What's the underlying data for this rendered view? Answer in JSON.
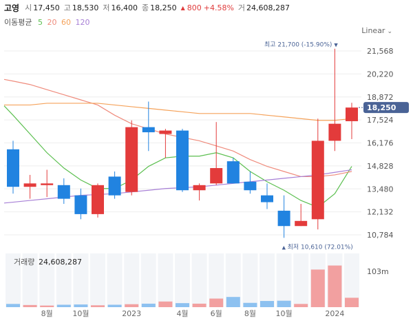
{
  "header": {
    "name": "고영",
    "open_label": "시",
    "open": "17,450",
    "high_label": "고",
    "high": "18,530",
    "low_label": "저",
    "low": "16,400",
    "close_label": "종",
    "close": "18,250",
    "change_arrow": "▲",
    "change": "800",
    "change_pct": "+4.58%",
    "volume_label": "거",
    "volume": "24,608,287"
  },
  "ma_legend": {
    "label": "이동평균",
    "items": [
      {
        "period": "5",
        "color": "#5bbf4f"
      },
      {
        "period": "20",
        "color": "#ef8b7c"
      },
      {
        "period": "60",
        "color": "#f5a25a"
      },
      {
        "period": "120",
        "color": "#a77fd6"
      }
    ]
  },
  "scale_button": {
    "label": "Linear"
  },
  "colors": {
    "up": "#e33b3b",
    "down": "#2183e0",
    "price_tag": "#4a6396"
  },
  "chart_data": {
    "type": "candlestick",
    "y_ticks": [
      "21,568",
      "20,220",
      "18,872",
      "17,524",
      "16,176",
      "14,828",
      "13,480",
      "12,132",
      "10,784"
    ],
    "ylim": [
      10300,
      22100
    ],
    "x_ticks": [
      {
        "index": 2,
        "label": "8월"
      },
      {
        "index": 4,
        "label": "10월"
      },
      {
        "index": 7,
        "label": "2023"
      },
      {
        "index": 10,
        "label": "4월"
      },
      {
        "index": 12,
        "label": "6월"
      },
      {
        "index": 14,
        "label": "8월"
      },
      {
        "index": 16,
        "label": "10월"
      },
      {
        "index": 19,
        "label": "2024"
      }
    ],
    "candles": [
      {
        "o": 15800,
        "h": 16300,
        "l": 13200,
        "c": 13600
      },
      {
        "o": 13600,
        "h": 14300,
        "l": 12900,
        "c": 13800
      },
      {
        "o": 13700,
        "h": 14600,
        "l": 13000,
        "c": 13800
      },
      {
        "o": 13700,
        "h": 14100,
        "l": 12600,
        "c": 12900
      },
      {
        "o": 13100,
        "h": 13500,
        "l": 11700,
        "c": 12000
      },
      {
        "o": 12000,
        "h": 13800,
        "l": 11800,
        "c": 13700
      },
      {
        "o": 14200,
        "h": 14500,
        "l": 12900,
        "c": 13100
      },
      {
        "o": 13300,
        "h": 17500,
        "l": 13100,
        "c": 17100
      },
      {
        "o": 17100,
        "h": 18600,
        "l": 15700,
        "c": 16800
      },
      {
        "o": 16700,
        "h": 17000,
        "l": 15300,
        "c": 16900
      },
      {
        "o": 16900,
        "h": 17000,
        "l": 13300,
        "c": 13400
      },
      {
        "o": 13400,
        "h": 13800,
        "l": 12800,
        "c": 13700
      },
      {
        "o": 13800,
        "h": 17400,
        "l": 13700,
        "c": 14700
      },
      {
        "o": 15100,
        "h": 15300,
        "l": 13800,
        "c": 13800
      },
      {
        "o": 13900,
        "h": 14500,
        "l": 13200,
        "c": 13400
      },
      {
        "o": 13100,
        "h": 13800,
        "l": 12300,
        "c": 12700
      },
      {
        "o": 12200,
        "h": 13100,
        "l": 10610,
        "c": 11300
      },
      {
        "o": 11300,
        "h": 12600,
        "l": 11300,
        "c": 11600
      },
      {
        "o": 11700,
        "h": 17600,
        "l": 11100,
        "c": 16300
      },
      {
        "o": 16300,
        "h": 21700,
        "l": 15700,
        "c": 17300
      },
      {
        "o": 17450,
        "h": 18530,
        "l": 16400,
        "c": 18250
      }
    ],
    "ma": [
      {
        "period": "5",
        "color": "#5bbf4f",
        "values": [
          17800,
          16700,
          15600,
          14700,
          14000,
          13500,
          13500,
          14000,
          14800,
          15300,
          15400,
          15400,
          15600,
          15300,
          14500,
          13900,
          13400,
          12800,
          12400,
          13200,
          14800
        ]
      },
      {
        "period": "20",
        "color": "#ef8b7c",
        "values": [
          19800,
          19600,
          19300,
          19000,
          18700,
          18400,
          17800,
          17300,
          17000,
          16700,
          16500,
          16300,
          16000,
          15700,
          15200,
          14800,
          14500,
          14200,
          14200,
          14300,
          14500
        ]
      },
      {
        "period": "60",
        "color": "#f5a25a",
        "values": [
          18400,
          18400,
          18500,
          18500,
          18500,
          18500,
          18400,
          18300,
          18200,
          18100,
          18000,
          17900,
          17900,
          17900,
          17900,
          17800,
          17700,
          17600,
          17500,
          17500,
          17600
        ]
      },
      {
        "period": "120",
        "color": "#a77fd6",
        "values": [
          12700,
          12800,
          12900,
          13000,
          13100,
          13150,
          13200,
          13300,
          13400,
          13500,
          13550,
          13600,
          13700,
          13800,
          13900,
          14000,
          14100,
          14200,
          14300,
          14450,
          14600
        ]
      }
    ],
    "volumes": [
      1.2,
      0.8,
      0.6,
      0.9,
      1.0,
      0.7,
      0.9,
      1.1,
      1.3,
      2.1,
      1.5,
      1.3,
      3.2,
      3.8,
      1.6,
      2.3,
      2.4,
      1.2,
      14.0,
      15.5,
      3.5
    ],
    "volume_max": 20,
    "volume_tick": "103m",
    "current_price": {
      "value": 18250,
      "label": "18,250"
    },
    "max_annotation": {
      "index": 19,
      "value": 21700,
      "label": "최고 21,700 (-15.90%)",
      "arrow": "▼"
    },
    "min_annotation": {
      "index": 16,
      "value": 10610,
      "label": "최저 10,610 (72.01%)",
      "arrow": "▲"
    },
    "volume_panel": {
      "label": "거래량",
      "value": "24,608,287"
    }
  }
}
